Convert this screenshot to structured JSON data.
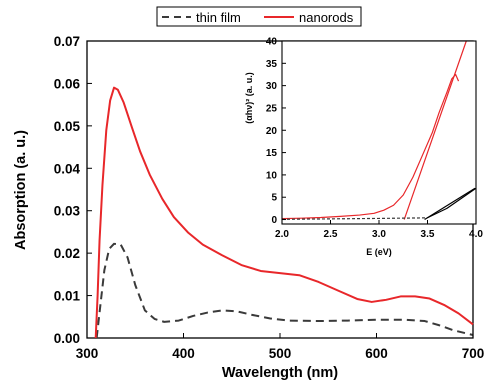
{
  "colors": {
    "thin_film": "#3a3a3a",
    "nanorods": "#e8272a"
  },
  "chart_data": [
    {
      "type": "line",
      "xlabel": "Wavelength (nm)",
      "ylabel": "Absorption (a. u.)",
      "xlim": [
        300,
        700
      ],
      "ylim": [
        0,
        0.07
      ],
      "x_ticks": [
        "300",
        "400",
        "500",
        "600",
        "700"
      ],
      "y_ticks": [
        "0.00",
        "0.01",
        "0.02",
        "0.03",
        "0.04",
        "0.05",
        "0.06",
        "0.07"
      ],
      "legend": {
        "placement": "top",
        "entries": [
          "thin film",
          "nanorods"
        ]
      },
      "series": [
        {
          "name": "thin film",
          "style": "dashed",
          "color": "#3a3a3a",
          "points": [
            [
              310,
              0
            ],
            [
              314,
              0.008
            ],
            [
              318,
              0.016
            ],
            [
              323,
              0.021
            ],
            [
              328,
              0.0222
            ],
            [
              335,
              0.022
            ],
            [
              342,
              0.019
            ],
            [
              350,
              0.0125
            ],
            [
              360,
              0.0065
            ],
            [
              370,
              0.0045
            ],
            [
              380,
              0.0038
            ],
            [
              395,
              0.0041
            ],
            [
              410,
              0.0052
            ],
            [
              425,
              0.006
            ],
            [
              440,
              0.0065
            ],
            [
              455,
              0.0063
            ],
            [
              470,
              0.0055
            ],
            [
              490,
              0.0046
            ],
            [
              510,
              0.0041
            ],
            [
              540,
              0.004
            ],
            [
              570,
              0.0041
            ],
            [
              600,
              0.0043
            ],
            [
              630,
              0.0043
            ],
            [
              650,
              0.004
            ],
            [
              665,
              0.003
            ],
            [
              680,
              0.0018
            ],
            [
              700,
              0.0007
            ]
          ]
        },
        {
          "name": "nanorods",
          "style": "solid",
          "color": "#e8272a",
          "points": [
            [
              309,
              0
            ],
            [
              311,
              0.01
            ],
            [
              313,
              0.023
            ],
            [
              316,
              0.036
            ],
            [
              320,
              0.049
            ],
            [
              324,
              0.056
            ],
            [
              328,
              0.059
            ],
            [
              332,
              0.0585
            ],
            [
              338,
              0.0555
            ],
            [
              346,
              0.05
            ],
            [
              355,
              0.044
            ],
            [
              365,
              0.0385
            ],
            [
              378,
              0.0328
            ],
            [
              390,
              0.0285
            ],
            [
              405,
              0.0248
            ],
            [
              420,
              0.022
            ],
            [
              440,
              0.0195
            ],
            [
              460,
              0.0172
            ],
            [
              480,
              0.0158
            ],
            [
              500,
              0.0153
            ],
            [
              520,
              0.0148
            ],
            [
              540,
              0.0132
            ],
            [
              560,
              0.0112
            ],
            [
              580,
              0.0092
            ],
            [
              595,
              0.0085
            ],
            [
              610,
              0.009
            ],
            [
              625,
              0.0098
            ],
            [
              640,
              0.0098
            ],
            [
              655,
              0.0093
            ],
            [
              670,
              0.0078
            ],
            [
              685,
              0.0058
            ],
            [
              700,
              0.0032
            ]
          ]
        }
      ]
    },
    {
      "type": "line",
      "placement": "inset",
      "xlabel": "E (eV)",
      "ylabel": "(αhν)² (a. u.)",
      "xlim": [
        2.0,
        4.0
      ],
      "ylim": [
        -1,
        40
      ],
      "x_ticks": [
        "2.0",
        "2.5",
        "3.0",
        "3.5",
        "4.0"
      ],
      "y_ticks": [
        "0",
        "5",
        "10",
        "15",
        "20",
        "25",
        "30",
        "35",
        "40"
      ],
      "series": [
        {
          "style": "solid",
          "color": "#e8272a",
          "points": [
            [
              2.0,
              0.2
            ],
            [
              2.2,
              0.3
            ],
            [
              2.4,
              0.45
            ],
            [
              2.6,
              0.7
            ],
            [
              2.8,
              1.0
            ],
            [
              2.95,
              1.4
            ],
            [
              3.05,
              2.1
            ],
            [
              3.15,
              3.2
            ],
            [
              3.25,
              5.5
            ],
            [
              3.35,
              9.5
            ],
            [
              3.45,
              14.5
            ],
            [
              3.55,
              19.5
            ],
            [
              3.62,
              24
            ],
            [
              3.7,
              28.5
            ],
            [
              3.75,
              31.5
            ],
            [
              3.79,
              32.5
            ],
            [
              3.82,
              31
            ]
          ]
        },
        {
          "style": "solid",
          "color": "#e8272a",
          "points": [
            [
              3.26,
              0
            ],
            [
              3.9,
              40
            ]
          ]
        },
        {
          "style": "dashed",
          "color": "#3a3a3a",
          "points": [
            [
              2.0,
              0.05
            ],
            [
              2.5,
              0.15
            ],
            [
              3.0,
              0.25
            ],
            [
              3.4,
              0.35
            ],
            [
              3.5,
              0.4
            ]
          ]
        },
        {
          "style": "solid",
          "color": "#000000",
          "points": [
            [
              3.5,
              0.4
            ],
            [
              3.7,
              2.5
            ],
            [
              4.0,
              7
            ]
          ]
        },
        {
          "style": "solid",
          "color": "#000000",
          "points": [
            [
              3.47,
              0
            ],
            [
              3.99,
              7
            ]
          ]
        }
      ]
    }
  ]
}
